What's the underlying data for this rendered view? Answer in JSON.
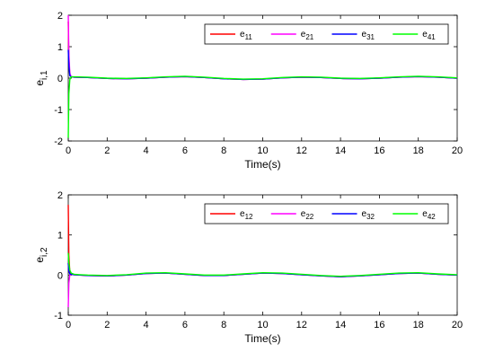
{
  "chart_data": [
    {
      "type": "line",
      "xlabel": "Time(s)",
      "ylabel": "e",
      "ylabel_sub": "i,1",
      "xlim": [
        0,
        20
      ],
      "ylim": [
        -2,
        2
      ],
      "xticks": [
        0,
        2,
        4,
        6,
        8,
        10,
        12,
        14,
        16,
        18,
        20
      ],
      "yticks": [
        -2,
        -1,
        0,
        1,
        2
      ],
      "grid": false,
      "legend_position": "top-right",
      "legend_orientation": "horizontal",
      "series": [
        {
          "name": "e",
          "name_sub": "11",
          "color": "#ff0000",
          "x": [
            0,
            0.03,
            0.08,
            0.15,
            0.3,
            1,
            2,
            3,
            4,
            5,
            6,
            7,
            8,
            9,
            10,
            11,
            12,
            13,
            14,
            15,
            16,
            17,
            18,
            19,
            20
          ],
          "y": [
            1.8,
            0.6,
            0.1,
            0.04,
            0.03,
            0.02,
            -0.01,
            -0.02,
            0.0,
            0.03,
            0.05,
            0.02,
            -0.02,
            -0.04,
            -0.03,
            0.01,
            0.03,
            0.02,
            -0.01,
            -0.02,
            0.0,
            0.03,
            0.05,
            0.03,
            0.0
          ]
        },
        {
          "name": "e",
          "name_sub": "21",
          "color": "#ff00ff",
          "x": [
            0,
            0.03,
            0.08,
            0.15,
            0.3,
            1,
            2,
            3,
            4,
            5,
            6,
            7,
            8,
            9,
            10,
            11,
            12,
            13,
            14,
            15,
            16,
            17,
            18,
            19,
            20
          ],
          "y": [
            2.0,
            0.8,
            0.15,
            0.05,
            0.03,
            0.02,
            -0.01,
            -0.02,
            0.0,
            0.03,
            0.05,
            0.02,
            -0.02,
            -0.04,
            -0.03,
            0.01,
            0.03,
            0.02,
            -0.01,
            -0.02,
            0.0,
            0.03,
            0.05,
            0.03,
            0.0
          ]
        },
        {
          "name": "e",
          "name_sub": "31",
          "color": "#0000ff",
          "x": [
            0,
            0.03,
            0.08,
            0.15,
            0.3,
            1,
            2,
            3,
            4,
            5,
            6,
            7,
            8,
            9,
            10,
            11,
            12,
            13,
            14,
            15,
            16,
            17,
            18,
            19,
            20
          ],
          "y": [
            0.9,
            0.4,
            0.08,
            0.04,
            0.03,
            0.02,
            -0.01,
            -0.02,
            0.0,
            0.03,
            0.05,
            0.02,
            -0.02,
            -0.04,
            -0.03,
            0.01,
            0.03,
            0.02,
            -0.01,
            -0.02,
            0.0,
            0.03,
            0.05,
            0.03,
            0.0
          ]
        },
        {
          "name": "e",
          "name_sub": "41",
          "color": "#00ff00",
          "x": [
            0,
            0.03,
            0.08,
            0.15,
            0.3,
            1,
            2,
            3,
            4,
            5,
            6,
            7,
            8,
            9,
            10,
            11,
            12,
            13,
            14,
            15,
            16,
            17,
            18,
            19,
            20
          ],
          "y": [
            -1.9,
            -0.5,
            -0.05,
            0.04,
            0.04,
            0.03,
            0.0,
            -0.01,
            0.01,
            0.04,
            0.06,
            0.03,
            -0.01,
            -0.03,
            -0.02,
            0.02,
            0.04,
            0.03,
            0.0,
            -0.01,
            0.01,
            0.04,
            0.06,
            0.04,
            0.01
          ]
        }
      ]
    },
    {
      "type": "line",
      "xlabel": "Time(s)",
      "ylabel": "e",
      "ylabel_sub": "i,2",
      "xlim": [
        0,
        20
      ],
      "ylim": [
        -1,
        2
      ],
      "xticks": [
        0,
        2,
        4,
        6,
        8,
        10,
        12,
        14,
        16,
        18,
        20
      ],
      "yticks": [
        -1,
        0,
        1,
        2
      ],
      "grid": false,
      "legend_position": "top-right",
      "legend_orientation": "horizontal",
      "series": [
        {
          "name": "e",
          "name_sub": "12",
          "color": "#ff0000",
          "x": [
            0,
            0.03,
            0.08,
            0.15,
            0.3,
            0.6,
            1,
            2,
            3,
            4,
            5,
            6,
            7,
            8,
            9,
            10,
            11,
            12,
            13,
            14,
            15,
            16,
            17,
            18,
            19,
            20
          ],
          "y": [
            1.75,
            0.5,
            0.08,
            0.02,
            0.01,
            0.0,
            -0.01,
            -0.02,
            0.0,
            0.04,
            0.05,
            0.02,
            -0.01,
            -0.01,
            0.02,
            0.05,
            0.04,
            0.01,
            -0.02,
            -0.04,
            -0.02,
            0.01,
            0.04,
            0.05,
            0.02,
            0.0
          ]
        },
        {
          "name": "e",
          "name_sub": "22",
          "color": "#ff00ff",
          "x": [
            0,
            0.03,
            0.08,
            0.15,
            0.3,
            0.6,
            1,
            2,
            3,
            4,
            5,
            6,
            7,
            8,
            9,
            10,
            11,
            12,
            13,
            14,
            15,
            16,
            17,
            18,
            19,
            20
          ],
          "y": [
            -0.8,
            -0.2,
            0.0,
            0.02,
            0.01,
            0.0,
            -0.01,
            -0.02,
            0.0,
            0.04,
            0.05,
            0.02,
            -0.01,
            -0.01,
            0.02,
            0.05,
            0.04,
            0.01,
            -0.02,
            -0.04,
            -0.02,
            0.01,
            0.04,
            0.05,
            0.02,
            0.0
          ]
        },
        {
          "name": "e",
          "name_sub": "32",
          "color": "#0000ff",
          "x": [
            0,
            0.03,
            0.08,
            0.15,
            0.3,
            0.6,
            1,
            2,
            3,
            4,
            5,
            6,
            7,
            8,
            9,
            10,
            11,
            12,
            13,
            14,
            15,
            16,
            17,
            18,
            19,
            20
          ],
          "y": [
            0.3,
            0.1,
            0.03,
            0.02,
            0.01,
            0.0,
            -0.01,
            -0.02,
            0.0,
            0.04,
            0.05,
            0.02,
            -0.01,
            -0.01,
            0.02,
            0.05,
            0.04,
            0.01,
            -0.02,
            -0.04,
            -0.02,
            0.01,
            0.04,
            0.05,
            0.02,
            0.0
          ]
        },
        {
          "name": "e",
          "name_sub": "42",
          "color": "#00ff00",
          "x": [
            0,
            0.03,
            0.08,
            0.15,
            0.3,
            0.6,
            1,
            2,
            3,
            4,
            5,
            6,
            7,
            8,
            9,
            10,
            11,
            12,
            13,
            14,
            15,
            16,
            17,
            18,
            19,
            20
          ],
          "y": [
            0.55,
            0.3,
            0.12,
            0.05,
            0.02,
            0.01,
            0.0,
            -0.01,
            0.01,
            0.05,
            0.06,
            0.03,
            0.0,
            0.0,
            0.03,
            0.06,
            0.05,
            0.02,
            -0.01,
            -0.03,
            -0.01,
            0.02,
            0.05,
            0.06,
            0.03,
            0.01
          ]
        }
      ]
    }
  ]
}
